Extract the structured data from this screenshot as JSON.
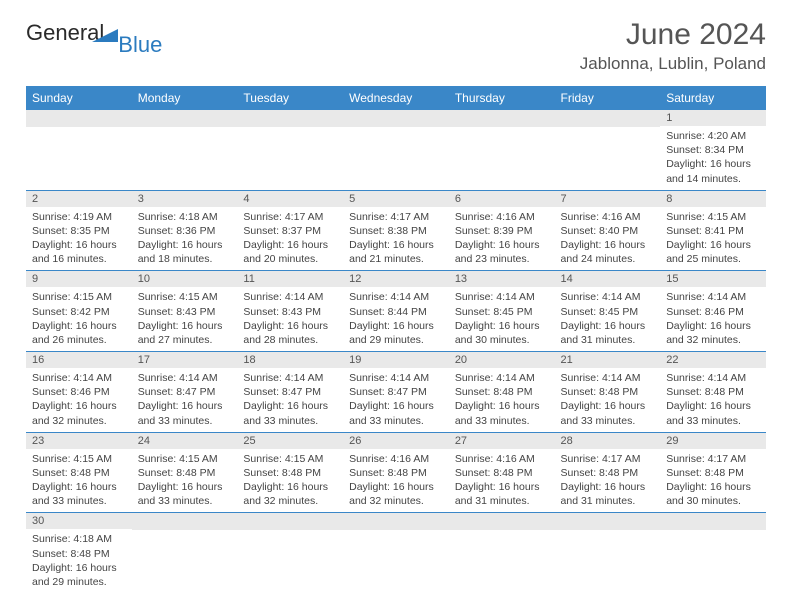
{
  "logo": {
    "word1": "General",
    "word2": "Blue"
  },
  "title": "June 2024",
  "location": "Jablonna, Lublin, Poland",
  "colors": {
    "header_bg": "#3a87c8",
    "header_text": "#ffffff",
    "daynum_bg": "#e9e9e9",
    "rule": "#3a87c8",
    "title_color": "#555555",
    "logo_blue": "#2b7bbf"
  },
  "day_headers": [
    "Sunday",
    "Monday",
    "Tuesday",
    "Wednesday",
    "Thursday",
    "Friday",
    "Saturday"
  ],
  "weeks": [
    [
      null,
      null,
      null,
      null,
      null,
      null,
      {
        "n": "1",
        "sunrise": "Sunrise: 4:20 AM",
        "sunset": "Sunset: 8:34 PM",
        "day1": "Daylight: 16 hours",
        "day2": "and 14 minutes."
      }
    ],
    [
      {
        "n": "2",
        "sunrise": "Sunrise: 4:19 AM",
        "sunset": "Sunset: 8:35 PM",
        "day1": "Daylight: 16 hours",
        "day2": "and 16 minutes."
      },
      {
        "n": "3",
        "sunrise": "Sunrise: 4:18 AM",
        "sunset": "Sunset: 8:36 PM",
        "day1": "Daylight: 16 hours",
        "day2": "and 18 minutes."
      },
      {
        "n": "4",
        "sunrise": "Sunrise: 4:17 AM",
        "sunset": "Sunset: 8:37 PM",
        "day1": "Daylight: 16 hours",
        "day2": "and 20 minutes."
      },
      {
        "n": "5",
        "sunrise": "Sunrise: 4:17 AM",
        "sunset": "Sunset: 8:38 PM",
        "day1": "Daylight: 16 hours",
        "day2": "and 21 minutes."
      },
      {
        "n": "6",
        "sunrise": "Sunrise: 4:16 AM",
        "sunset": "Sunset: 8:39 PM",
        "day1": "Daylight: 16 hours",
        "day2": "and 23 minutes."
      },
      {
        "n": "7",
        "sunrise": "Sunrise: 4:16 AM",
        "sunset": "Sunset: 8:40 PM",
        "day1": "Daylight: 16 hours",
        "day2": "and 24 minutes."
      },
      {
        "n": "8",
        "sunrise": "Sunrise: 4:15 AM",
        "sunset": "Sunset: 8:41 PM",
        "day1": "Daylight: 16 hours",
        "day2": "and 25 minutes."
      }
    ],
    [
      {
        "n": "9",
        "sunrise": "Sunrise: 4:15 AM",
        "sunset": "Sunset: 8:42 PM",
        "day1": "Daylight: 16 hours",
        "day2": "and 26 minutes."
      },
      {
        "n": "10",
        "sunrise": "Sunrise: 4:15 AM",
        "sunset": "Sunset: 8:43 PM",
        "day1": "Daylight: 16 hours",
        "day2": "and 27 minutes."
      },
      {
        "n": "11",
        "sunrise": "Sunrise: 4:14 AM",
        "sunset": "Sunset: 8:43 PM",
        "day1": "Daylight: 16 hours",
        "day2": "and 28 minutes."
      },
      {
        "n": "12",
        "sunrise": "Sunrise: 4:14 AM",
        "sunset": "Sunset: 8:44 PM",
        "day1": "Daylight: 16 hours",
        "day2": "and 29 minutes."
      },
      {
        "n": "13",
        "sunrise": "Sunrise: 4:14 AM",
        "sunset": "Sunset: 8:45 PM",
        "day1": "Daylight: 16 hours",
        "day2": "and 30 minutes."
      },
      {
        "n": "14",
        "sunrise": "Sunrise: 4:14 AM",
        "sunset": "Sunset: 8:45 PM",
        "day1": "Daylight: 16 hours",
        "day2": "and 31 minutes."
      },
      {
        "n": "15",
        "sunrise": "Sunrise: 4:14 AM",
        "sunset": "Sunset: 8:46 PM",
        "day1": "Daylight: 16 hours",
        "day2": "and 32 minutes."
      }
    ],
    [
      {
        "n": "16",
        "sunrise": "Sunrise: 4:14 AM",
        "sunset": "Sunset: 8:46 PM",
        "day1": "Daylight: 16 hours",
        "day2": "and 32 minutes."
      },
      {
        "n": "17",
        "sunrise": "Sunrise: 4:14 AM",
        "sunset": "Sunset: 8:47 PM",
        "day1": "Daylight: 16 hours",
        "day2": "and 33 minutes."
      },
      {
        "n": "18",
        "sunrise": "Sunrise: 4:14 AM",
        "sunset": "Sunset: 8:47 PM",
        "day1": "Daylight: 16 hours",
        "day2": "and 33 minutes."
      },
      {
        "n": "19",
        "sunrise": "Sunrise: 4:14 AM",
        "sunset": "Sunset: 8:47 PM",
        "day1": "Daylight: 16 hours",
        "day2": "and 33 minutes."
      },
      {
        "n": "20",
        "sunrise": "Sunrise: 4:14 AM",
        "sunset": "Sunset: 8:48 PM",
        "day1": "Daylight: 16 hours",
        "day2": "and 33 minutes."
      },
      {
        "n": "21",
        "sunrise": "Sunrise: 4:14 AM",
        "sunset": "Sunset: 8:48 PM",
        "day1": "Daylight: 16 hours",
        "day2": "and 33 minutes."
      },
      {
        "n": "22",
        "sunrise": "Sunrise: 4:14 AM",
        "sunset": "Sunset: 8:48 PM",
        "day1": "Daylight: 16 hours",
        "day2": "and 33 minutes."
      }
    ],
    [
      {
        "n": "23",
        "sunrise": "Sunrise: 4:15 AM",
        "sunset": "Sunset: 8:48 PM",
        "day1": "Daylight: 16 hours",
        "day2": "and 33 minutes."
      },
      {
        "n": "24",
        "sunrise": "Sunrise: 4:15 AM",
        "sunset": "Sunset: 8:48 PM",
        "day1": "Daylight: 16 hours",
        "day2": "and 33 minutes."
      },
      {
        "n": "25",
        "sunrise": "Sunrise: 4:15 AM",
        "sunset": "Sunset: 8:48 PM",
        "day1": "Daylight: 16 hours",
        "day2": "and 32 minutes."
      },
      {
        "n": "26",
        "sunrise": "Sunrise: 4:16 AM",
        "sunset": "Sunset: 8:48 PM",
        "day1": "Daylight: 16 hours",
        "day2": "and 32 minutes."
      },
      {
        "n": "27",
        "sunrise": "Sunrise: 4:16 AM",
        "sunset": "Sunset: 8:48 PM",
        "day1": "Daylight: 16 hours",
        "day2": "and 31 minutes."
      },
      {
        "n": "28",
        "sunrise": "Sunrise: 4:17 AM",
        "sunset": "Sunset: 8:48 PM",
        "day1": "Daylight: 16 hours",
        "day2": "and 31 minutes."
      },
      {
        "n": "29",
        "sunrise": "Sunrise: 4:17 AM",
        "sunset": "Sunset: 8:48 PM",
        "day1": "Daylight: 16 hours",
        "day2": "and 30 minutes."
      }
    ],
    [
      {
        "n": "30",
        "sunrise": "Sunrise: 4:18 AM",
        "sunset": "Sunset: 8:48 PM",
        "day1": "Daylight: 16 hours",
        "day2": "and 29 minutes."
      },
      null,
      null,
      null,
      null,
      null,
      null
    ]
  ]
}
